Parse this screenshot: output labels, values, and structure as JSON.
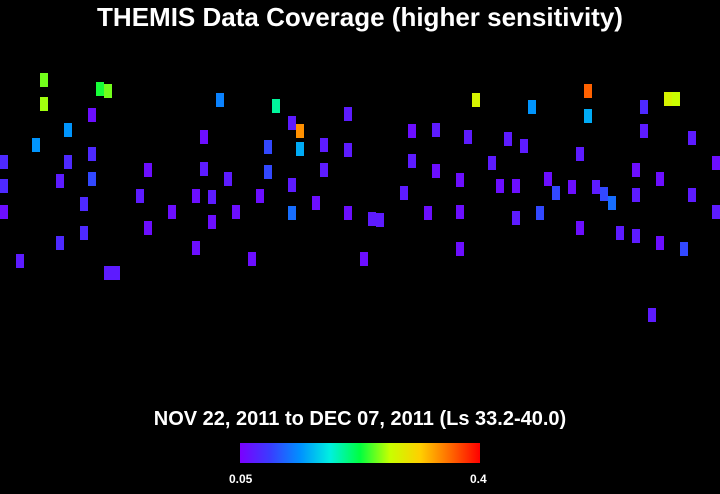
{
  "title": "THEMIS Data Coverage (higher sensitivity)",
  "subtitle": "NOV 22, 2011 to DEC 07, 2011 (Ls 33.2-40.0)",
  "colorbar": {
    "min_label": "0.05",
    "max_label": "0.4",
    "colors": [
      "#7b00ff",
      "#3a3cff",
      "#0090ff",
      "#00f0e0",
      "#00ff40",
      "#c8ff00",
      "#ffd000",
      "#ff6a00",
      "#ff0000"
    ]
  },
  "chart_data": {
    "type": "heatmap",
    "title": "THEMIS Data Coverage (higher sensitivity)",
    "value_range": [
      0.05,
      0.4
    ],
    "cells": [
      [
        4,
        159,
        0.08
      ],
      [
        4,
        183,
        0.08
      ],
      [
        4,
        209,
        0.06
      ],
      [
        20,
        258,
        0.07
      ],
      [
        36,
        142,
        0.14
      ],
      [
        44,
        77,
        0.25
      ],
      [
        44,
        101,
        0.26
      ],
      [
        68,
        127,
        0.14
      ],
      [
        68,
        159,
        0.08
      ],
      [
        60,
        178,
        0.07
      ],
      [
        60,
        240,
        0.08
      ],
      [
        92,
        151,
        0.08
      ],
      [
        92,
        176,
        0.1
      ],
      [
        84,
        201,
        0.08
      ],
      [
        84,
        230,
        0.08
      ],
      [
        100,
        86,
        0.23
      ],
      [
        108,
        88,
        0.25
      ],
      [
        92,
        112,
        0.06
      ],
      [
        108,
        270,
        0.07
      ],
      [
        116,
        270,
        0.07
      ],
      [
        148,
        167,
        0.06
      ],
      [
        140,
        193,
        0.07
      ],
      [
        148,
        225,
        0.06
      ],
      [
        172,
        209,
        0.06
      ],
      [
        204,
        134,
        0.06
      ],
      [
        204,
        166,
        0.07
      ],
      [
        196,
        193,
        0.06
      ],
      [
        196,
        245,
        0.06
      ],
      [
        212,
        194,
        0.07
      ],
      [
        212,
        219,
        0.06
      ],
      [
        220,
        97,
        0.13
      ],
      [
        228,
        176,
        0.07
      ],
      [
        236,
        209,
        0.06
      ],
      [
        252,
        256,
        0.06
      ],
      [
        260,
        193,
        0.06
      ],
      [
        268,
        144,
        0.1
      ],
      [
        276,
        103,
        0.2
      ],
      [
        268,
        169,
        0.1
      ],
      [
        292,
        182,
        0.07
      ],
      [
        292,
        210,
        0.12
      ],
      [
        300,
        128,
        0.34
      ],
      [
        300,
        146,
        0.15
      ],
      [
        292,
        120,
        0.07
      ],
      [
        324,
        142,
        0.07
      ],
      [
        324,
        167,
        0.07
      ],
      [
        316,
        200,
        0.06
      ],
      [
        348,
        111,
        0.07
      ],
      [
        348,
        147,
        0.07
      ],
      [
        348,
        210,
        0.06
      ],
      [
        364,
        256,
        0.06
      ],
      [
        372,
        216,
        0.07
      ],
      [
        380,
        217,
        0.07
      ],
      [
        412,
        128,
        0.06
      ],
      [
        412,
        158,
        0.07
      ],
      [
        404,
        190,
        0.07
      ],
      [
        436,
        127,
        0.07
      ],
      [
        436,
        168,
        0.06
      ],
      [
        428,
        210,
        0.06
      ],
      [
        460,
        177,
        0.06
      ],
      [
        460,
        209,
        0.06
      ],
      [
        460,
        246,
        0.06
      ],
      [
        468,
        134,
        0.07
      ],
      [
        476,
        97,
        0.28
      ],
      [
        492,
        160,
        0.07
      ],
      [
        500,
        183,
        0.06
      ],
      [
        508,
        136,
        0.07
      ],
      [
        516,
        183,
        0.06
      ],
      [
        524,
        143,
        0.07
      ],
      [
        516,
        215,
        0.07
      ],
      [
        532,
        104,
        0.14
      ],
      [
        540,
        210,
        0.1
      ],
      [
        548,
        176,
        0.06
      ],
      [
        556,
        190,
        0.1
      ],
      [
        580,
        151,
        0.07
      ],
      [
        572,
        184,
        0.06
      ],
      [
        580,
        225,
        0.06
      ],
      [
        588,
        88,
        0.36
      ],
      [
        588,
        113,
        0.15
      ],
      [
        596,
        184,
        0.07
      ],
      [
        604,
        191,
        0.1
      ],
      [
        612,
        200,
        0.12
      ],
      [
        620,
        230,
        0.07
      ],
      [
        636,
        233,
        0.07
      ],
      [
        644,
        104,
        0.08
      ],
      [
        644,
        128,
        0.07
      ],
      [
        636,
        167,
        0.06
      ],
      [
        636,
        192,
        0.07
      ],
      [
        660,
        176,
        0.06
      ],
      [
        660,
        240,
        0.06
      ],
      [
        668,
        96,
        0.28
      ],
      [
        676,
        96,
        0.27
      ],
      [
        684,
        246,
        0.1
      ],
      [
        692,
        135,
        0.07
      ],
      [
        692,
        192,
        0.07
      ],
      [
        716,
        160,
        0.06
      ],
      [
        716,
        209,
        0.07
      ],
      [
        652,
        312,
        0.07
      ]
    ]
  }
}
